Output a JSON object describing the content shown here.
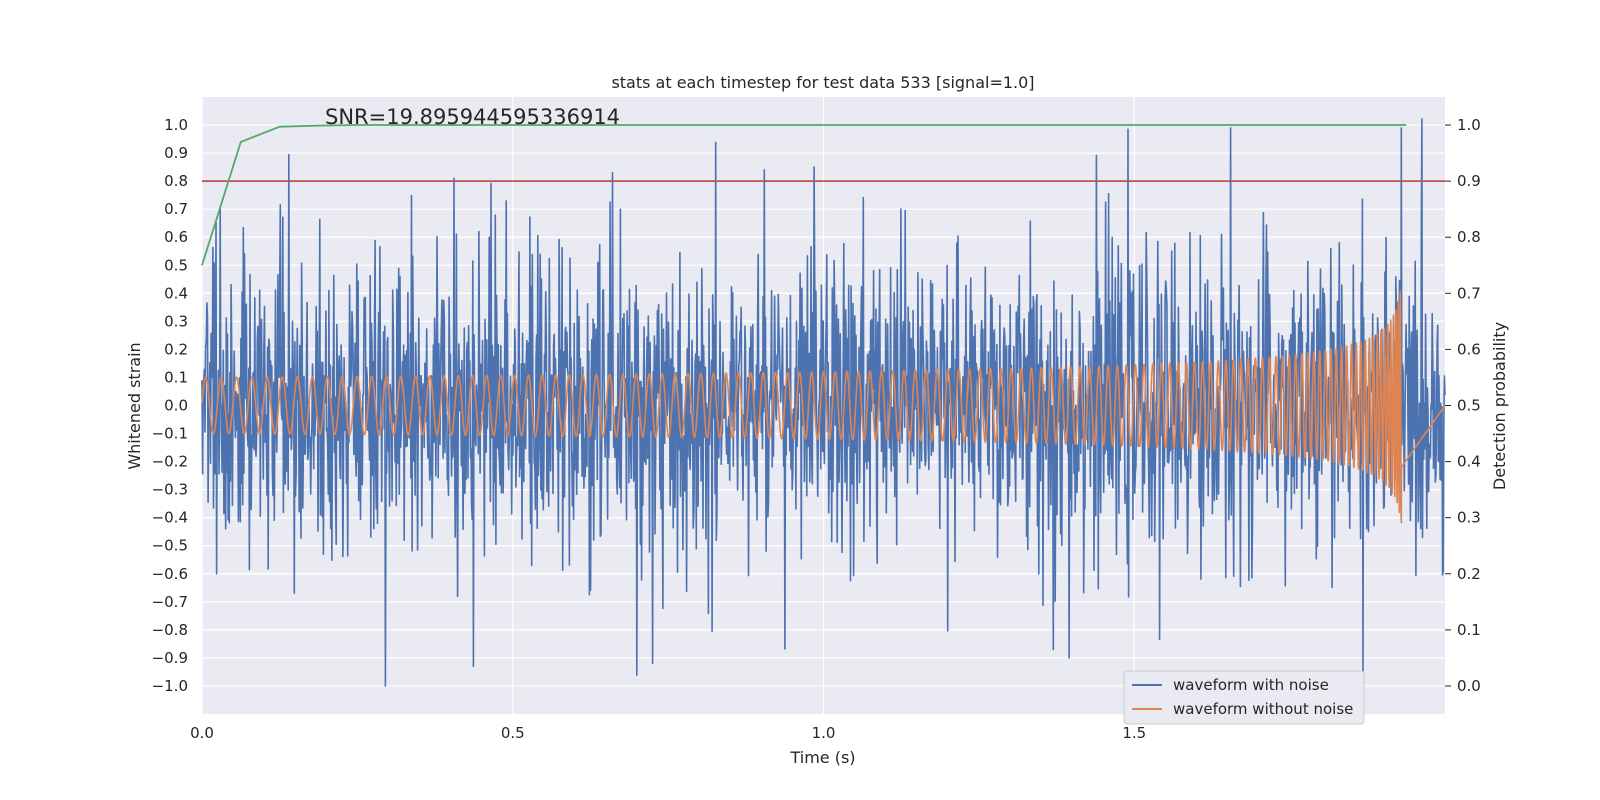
{
  "chart_data": {
    "type": "line",
    "title": "stats at each timestep for test data 533 [signal=1.0]",
    "annotation": "SNR=19.895944595336914",
    "xlabel": "Time (s)",
    "ylabel": "Whitened strain",
    "y2label": "Detection probability",
    "xlim": [
      0.0,
      2.0
    ],
    "ylim": [
      -1.1,
      1.1
    ],
    "y2lim": [
      -0.05,
      1.05
    ],
    "xticks": [
      0.0,
      0.5,
      1.0,
      1.5
    ],
    "xtick_labels": [
      "0.0",
      "0.5",
      "1.0",
      "1.5"
    ],
    "yticks": [
      1.0,
      0.9,
      0.8,
      0.7,
      0.6,
      0.5,
      0.4,
      0.3,
      0.2,
      0.1,
      0.0,
      -0.1,
      -0.2,
      -0.3,
      -0.4,
      -0.5,
      -0.6,
      -0.7,
      -0.8,
      -0.9,
      -1.0
    ],
    "ytick_labels": [
      "1.0",
      "0.9",
      "0.8",
      "0.7",
      "0.6",
      "0.5",
      "0.4",
      "0.3",
      "0.2",
      "0.1",
      "0.0",
      "−0.1",
      "−0.2",
      "−0.3",
      "−0.4",
      "−0.5",
      "−0.6",
      "−0.7",
      "−0.8",
      "−0.9",
      "−1.0"
    ],
    "y2ticks": [
      1.0,
      0.9,
      0.8,
      0.7,
      0.6,
      0.5,
      0.4,
      0.3,
      0.2,
      0.1,
      0.0
    ],
    "y2tick_labels": [
      "1.0",
      "0.9",
      "0.8",
      "0.7",
      "0.6",
      "0.5",
      "0.4",
      "0.3",
      "0.2",
      "0.1",
      "0.0"
    ],
    "legend": [
      "waveform with noise",
      "waveform without noise"
    ],
    "legend_position": "lower-right",
    "series": [
      {
        "name": "waveform with noise",
        "color": "#4c72b0",
        "axis": "left",
        "generated": {
          "t_start": 0.0,
          "t_end": 2.0,
          "samples": 2048,
          "peak_values": [
            0.81,
            0.83,
            0.84,
            0.85,
            0.99,
            0.99,
            -1.0,
            -0.93,
            -0.92,
            -0.9,
            -0.87
          ]
        }
      },
      {
        "name": "waveform without noise",
        "color": "#dd8452",
        "axis": "left",
        "generated": {
          "t_start": 0.0,
          "t_end": 1.93,
          "start_freq_hz": 40,
          "start_amplitude": 0.1,
          "peak_amplitude": 0.47,
          "end_time": 1.93
        }
      },
      {
        "name": "detection probability",
        "color": "#55a868",
        "axis": "right",
        "x": [
          0.0,
          0.0625,
          0.125,
          0.1875,
          0.25,
          0.5,
          1.0,
          1.5,
          1.9375
        ],
        "values": [
          0.75,
          0.97,
          0.997,
          0.999,
          1.0,
          1.0,
          1.0,
          1.0,
          1.0
        ]
      }
    ],
    "threshold": {
      "value": 0.9,
      "axis": "right",
      "color": "#c44e52"
    },
    "colors": {
      "axes_bg": "#eaeaf2",
      "grid": "#ffffff",
      "text": "#262626"
    }
  }
}
